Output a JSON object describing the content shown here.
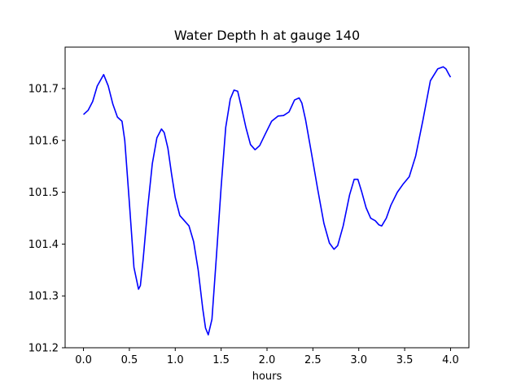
{
  "chart_data": {
    "type": "line",
    "title": "Water Depth h at gauge 140",
    "xlabel": "hours",
    "ylabel": "",
    "xlim": [
      -0.2,
      4.2
    ],
    "ylim": [
      101.2,
      101.78
    ],
    "xticks": [
      0.0,
      0.5,
      1.0,
      1.5,
      2.0,
      2.5,
      3.0,
      3.5,
      4.0
    ],
    "xtick_labels": [
      "0.0",
      "0.5",
      "1.0",
      "1.5",
      "2.0",
      "2.5",
      "3.0",
      "3.5",
      "4.0"
    ],
    "yticks": [
      101.2,
      101.3,
      101.4,
      101.5,
      101.6,
      101.7
    ],
    "ytick_labels": [
      "101.2",
      "101.3",
      "101.4",
      "101.5",
      "101.6",
      "101.7"
    ],
    "grid": false,
    "legend": "none",
    "series": [
      {
        "color": "#0000ff",
        "x": [
          0.0,
          0.05,
          0.1,
          0.15,
          0.22,
          0.27,
          0.32,
          0.37,
          0.42,
          0.45,
          0.5,
          0.55,
          0.6,
          0.62,
          0.65,
          0.7,
          0.75,
          0.8,
          0.85,
          0.88,
          0.92,
          0.96,
          1.0,
          1.05,
          1.1,
          1.15,
          1.2,
          1.25,
          1.3,
          1.33,
          1.36,
          1.4,
          1.45,
          1.5,
          1.55,
          1.6,
          1.64,
          1.68,
          1.72,
          1.77,
          1.82,
          1.87,
          1.92,
          1.98,
          2.05,
          2.12,
          2.18,
          2.24,
          2.3,
          2.35,
          2.38,
          2.42,
          2.48,
          2.55,
          2.62,
          2.68,
          2.73,
          2.77,
          2.83,
          2.9,
          2.95,
          2.99,
          3.03,
          3.08,
          3.13,
          3.18,
          3.22,
          3.25,
          3.3,
          3.35,
          3.42,
          3.48,
          3.55,
          3.62,
          3.7,
          3.78,
          3.86,
          3.92,
          3.95,
          3.98,
          4.0
        ],
        "y": [
          101.65,
          101.658,
          101.675,
          101.705,
          101.727,
          101.705,
          101.67,
          101.645,
          101.637,
          101.6,
          101.48,
          101.355,
          101.313,
          101.32,
          101.37,
          101.47,
          101.555,
          101.605,
          101.622,
          101.615,
          101.585,
          101.535,
          101.49,
          101.455,
          101.445,
          101.435,
          101.405,
          101.35,
          101.275,
          101.238,
          101.225,
          101.255,
          101.38,
          101.51,
          101.625,
          101.68,
          101.697,
          101.695,
          101.665,
          101.625,
          101.592,
          101.582,
          101.59,
          101.612,
          101.637,
          101.647,
          101.648,
          101.655,
          101.678,
          101.682,
          101.672,
          101.64,
          101.58,
          101.508,
          101.44,
          101.402,
          101.39,
          101.397,
          101.435,
          101.495,
          101.525,
          101.525,
          101.502,
          101.47,
          101.45,
          101.445,
          101.437,
          101.435,
          101.45,
          101.475,
          101.5,
          101.515,
          101.53,
          101.57,
          101.64,
          101.715,
          101.738,
          101.742,
          101.738,
          101.728,
          101.722
        ]
      }
    ]
  }
}
